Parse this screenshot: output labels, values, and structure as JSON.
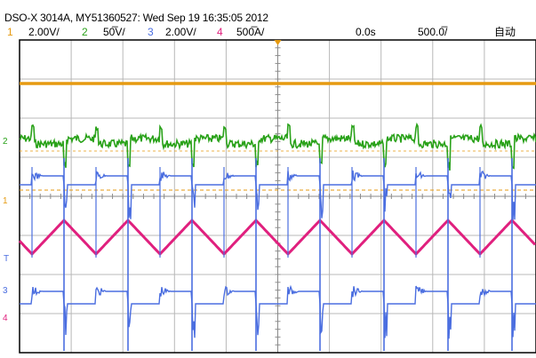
{
  "title": "DSO-X 3014A, MY51360527: Wed Sep 19 16:35:05 2012",
  "header": {
    "ch1_num": "1",
    "ch1_scale": "2.00V/",
    "ch2_num": "2",
    "ch2_scale": "50̅V/",
    "ch3_num": "3",
    "ch3_scale": "2.00V/",
    "ch4_num": "4",
    "ch4_scale": "500̅A/",
    "time_offset": "0.0s",
    "timebase": "500.0̅/",
    "mode": "自动"
  },
  "markers": {
    "ch1": "1",
    "ch2": "2",
    "ch3": "3",
    "ch4": "4",
    "trigger": "T"
  },
  "colors": {
    "ch1": "#e69a10",
    "ch2": "#2aa21a",
    "ch3": "#4b6ee0",
    "ch4": "#e0207e",
    "grid": "#b8b8b8",
    "border": "#000000"
  }
}
